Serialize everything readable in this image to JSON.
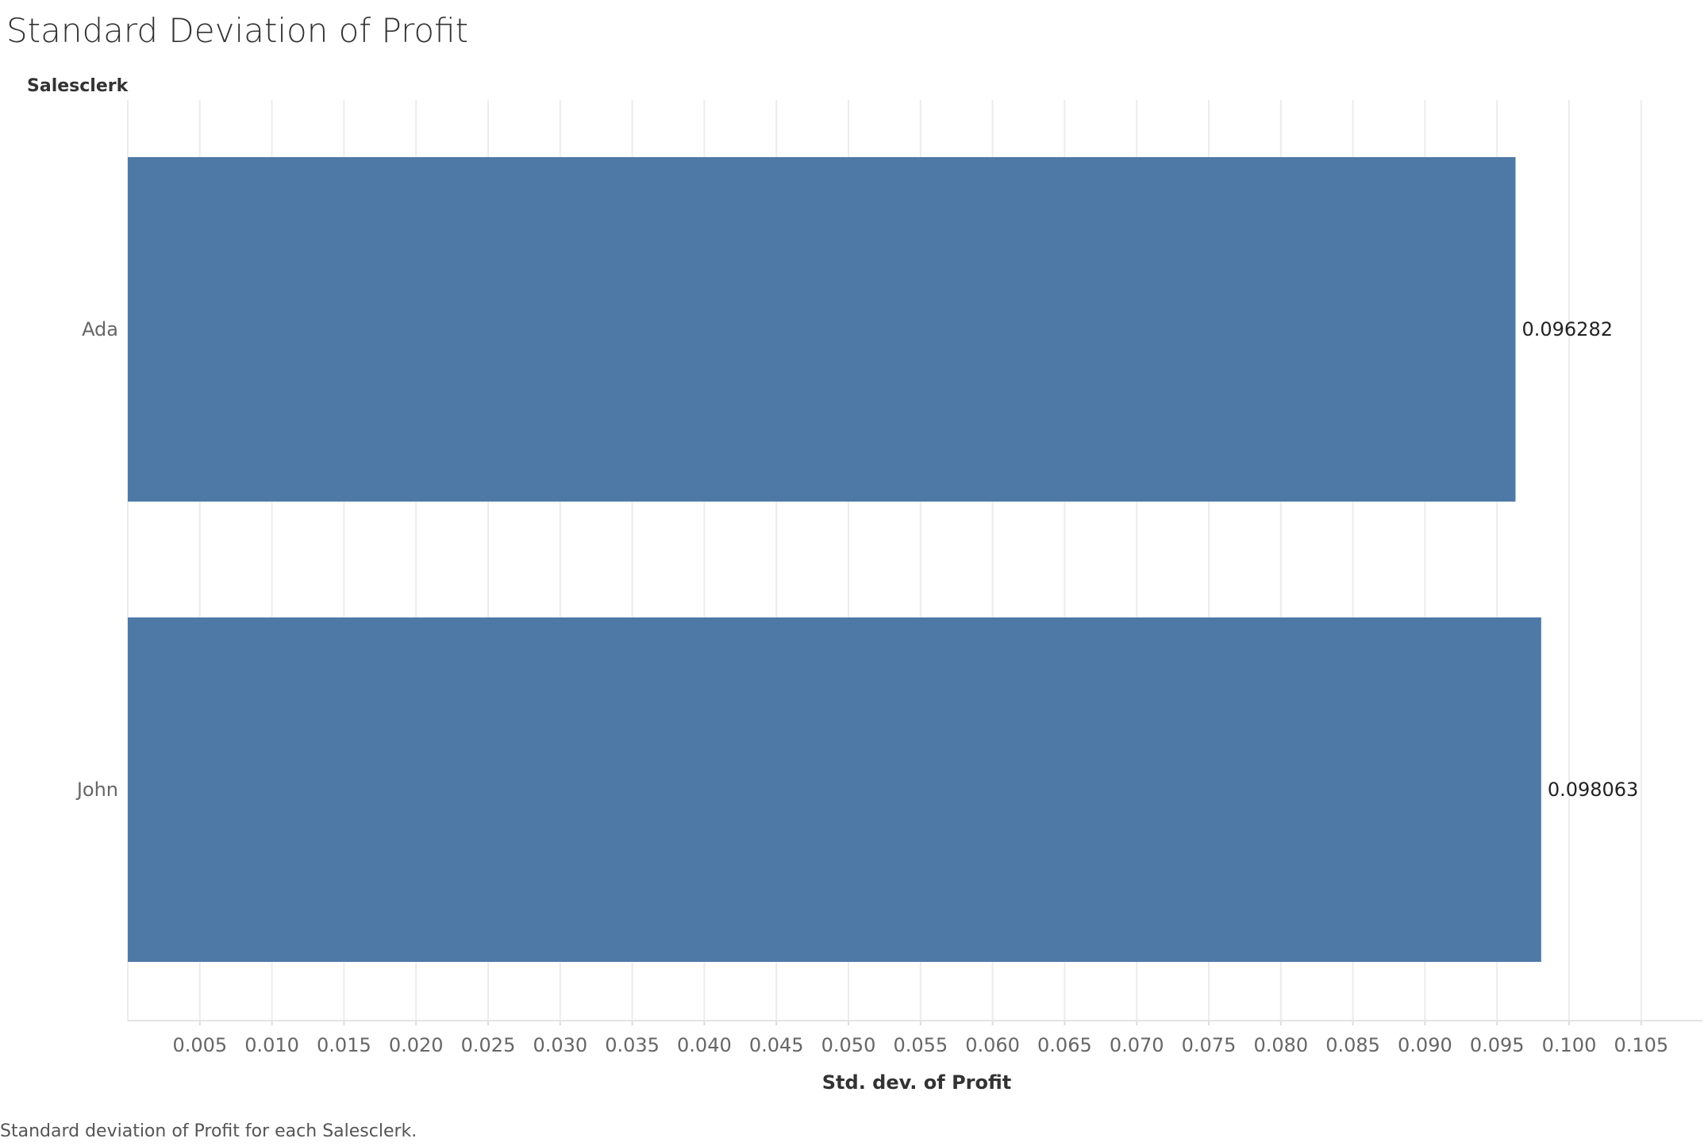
{
  "title": "Standard Deviation of Profit",
  "row_header": "Salesclerk",
  "caption": "Standard deviation of Profit for each Salesclerk.",
  "colors": {
    "bar": "#4e79a7",
    "grid": "#ececec",
    "axis_text": "#666666",
    "label_text": "#222222"
  },
  "chart_data": {
    "type": "bar",
    "orientation": "horizontal",
    "categories": [
      "Ada",
      "John"
    ],
    "values": [
      0.096282,
      0.098063
    ],
    "data_labels": [
      "0.096282",
      "0.098063"
    ],
    "xlabel": "Std. dev. of Profit",
    "ylabel": "Salesclerk",
    "xlim": [
      0,
      0.11
    ],
    "ticks": [
      0.005,
      0.01,
      0.015,
      0.02,
      0.025,
      0.03,
      0.035,
      0.04,
      0.045,
      0.05,
      0.055,
      0.06,
      0.065,
      0.07,
      0.075,
      0.08,
      0.085,
      0.09,
      0.095,
      0.1,
      0.105
    ],
    "tick_labels": [
      "0.005",
      "0.010",
      "0.015",
      "0.020",
      "0.025",
      "0.030",
      "0.035",
      "0.040",
      "0.045",
      "0.050",
      "0.055",
      "0.060",
      "0.065",
      "0.070",
      "0.075",
      "0.080",
      "0.085",
      "0.090",
      "0.095",
      "0.100",
      "0.105"
    ],
    "grid": true
  }
}
